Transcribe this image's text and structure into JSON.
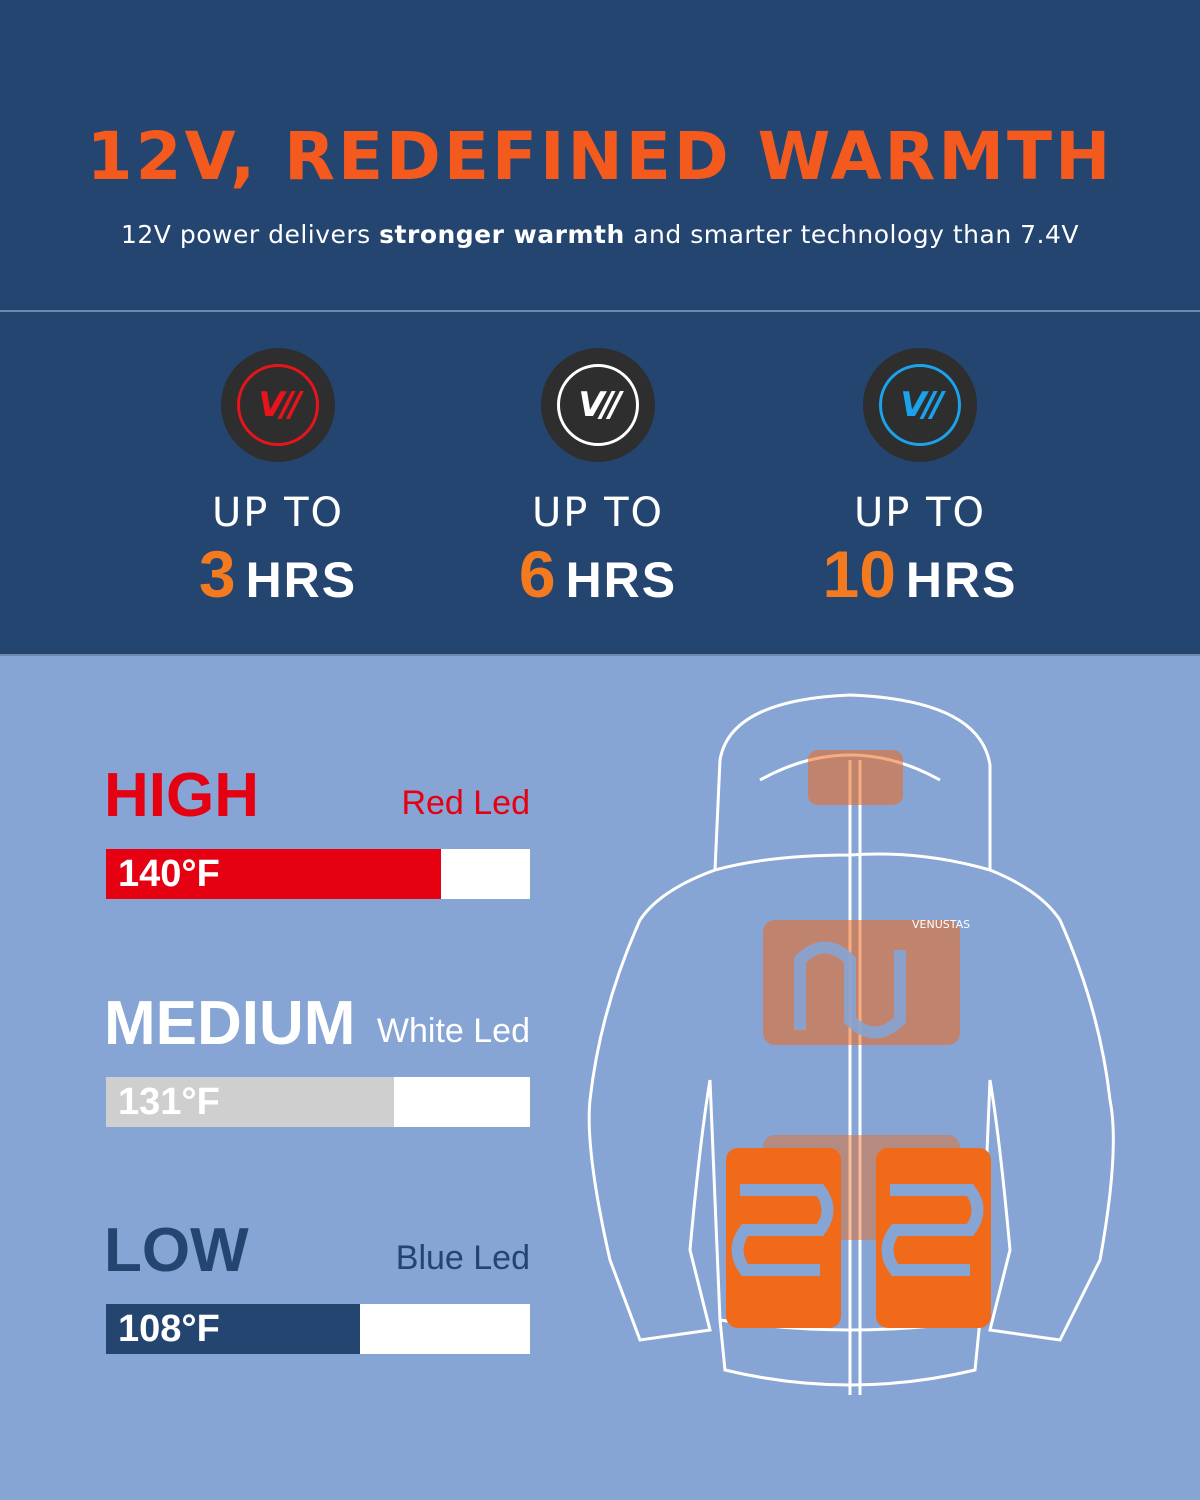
{
  "header": {
    "title": "12V, REDEFINED WARMTH",
    "subtitle_pre": "12V power delivers ",
    "subtitle_bold": "stronger warmth",
    "subtitle_post": " and smarter technology than 7.4V"
  },
  "runtimes": [
    {
      "icon": "red-led-logo-icon",
      "color": "#e8141c",
      "label": "UP TO",
      "value": "3",
      "unit": "HRS"
    },
    {
      "icon": "white-led-logo-icon",
      "color": "#ffffff",
      "label": "UP TO",
      "value": "6",
      "unit": "HRS"
    },
    {
      "icon": "blue-led-logo-icon",
      "color": "#1aa3ea",
      "label": "UP TO",
      "value": "10",
      "unit": "HRS"
    }
  ],
  "levels": [
    {
      "name": "HIGH",
      "led": "Red Led",
      "temp": "140°F",
      "color": "#e50012",
      "name_color": "#e50012",
      "led_color": "#e50012",
      "fill_percent": 79
    },
    {
      "name": "MEDIUM",
      "led": "White Led",
      "temp": "131°F",
      "color": "#cfcfcf",
      "name_color": "#ffffff",
      "led_color": "#ffffff",
      "fill_percent": 68
    },
    {
      "name": "LOW",
      "led": "Blue Led",
      "temp": "108°F",
      "color": "#244570",
      "name_color": "#244570",
      "led_color": "#244570",
      "fill_percent": 60
    }
  ],
  "jacket": {
    "brand": "VENUSTAS",
    "heater_color": "#f06a1a"
  },
  "colors": {
    "top_bg": "#244570",
    "bottom_bg": "#86a4d4",
    "accent": "#f45a1e"
  }
}
